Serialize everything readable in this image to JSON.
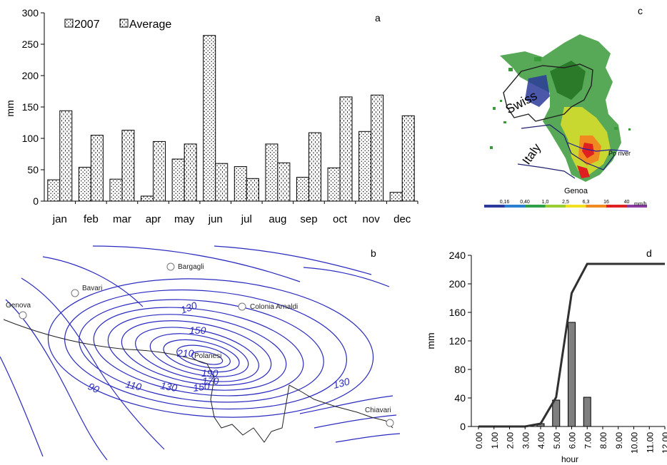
{
  "panels": {
    "a": "a",
    "b": "b",
    "c": "c",
    "d": "d"
  },
  "chart_data": [
    {
      "panel": "a",
      "type": "bar",
      "title": "",
      "xlabel": "",
      "ylabel": "mm",
      "ylim": [
        0,
        300
      ],
      "yticks": [
        "0",
        "50",
        "100",
        "150",
        "200",
        "250",
        "300"
      ],
      "categories": [
        "jan",
        "feb",
        "mar",
        "apr",
        "may",
        "jun",
        "jul",
        "aug",
        "sep",
        "oct",
        "nov",
        "dec"
      ],
      "legend_position": "top-left",
      "series": [
        {
          "name": "2007",
          "pattern": "dots",
          "values": [
            34,
            54,
            35,
            8,
            67,
            264,
            55,
            91,
            38,
            53,
            111,
            14
          ]
        },
        {
          "name": "Average",
          "pattern": "dashes",
          "values": [
            144,
            105,
            113,
            95,
            91,
            60,
            36,
            61,
            109,
            166,
            169,
            136
          ]
        }
      ]
    },
    {
      "panel": "d",
      "type": "bar",
      "title": "",
      "xlabel": "hour",
      "ylabel": "mm",
      "ylim": [
        0,
        240
      ],
      "yticks": [
        "0",
        "40",
        "80",
        "120",
        "160",
        "200",
        "240"
      ],
      "categories": [
        "0.00",
        "1.00",
        "2.00",
        "3.00",
        "4.00",
        "5.00",
        "6.00",
        "7.00",
        "8.00",
        "9.00",
        "10.00",
        "11.00",
        "12.00"
      ],
      "series": [
        {
          "kind": "bar",
          "color": "#7f7f7f",
          "values": [
            0,
            0,
            0,
            0,
            4,
            37,
            146,
            41,
            0,
            0,
            0,
            0,
            0
          ]
        },
        {
          "kind": "line",
          "color": "#303030",
          "values": [
            0,
            0,
            0,
            0,
            4,
            41,
            187,
            228,
            228,
            228,
            228,
            228,
            228
          ]
        }
      ]
    }
  ],
  "map_b": {
    "contour_color": "#2a2ac0",
    "contour_labels": [
      "130",
      "150",
      "210",
      "190",
      "170",
      "90",
      "110",
      "130",
      "150",
      "130"
    ],
    "places": [
      "Bargagli",
      "Bavari",
      "Genova",
      "Colonia Arnaldi",
      "Polanesi",
      "Chiavari"
    ]
  },
  "map_c": {
    "labels": [
      "Swiss",
      "Italy",
      "Po river",
      "Genoa"
    ],
    "scale_values": [
      "0,16",
      "0,40",
      "1,0",
      "2,5",
      "6,3",
      "16",
      "40"
    ],
    "scale_unit": "mm/h",
    "scale_colors": [
      "#2b3a9a",
      "#2a7fd0",
      "#2ea04a",
      "#9acd32",
      "#f0e020",
      "#f08a20",
      "#e02020",
      "#8a3aa0"
    ]
  }
}
